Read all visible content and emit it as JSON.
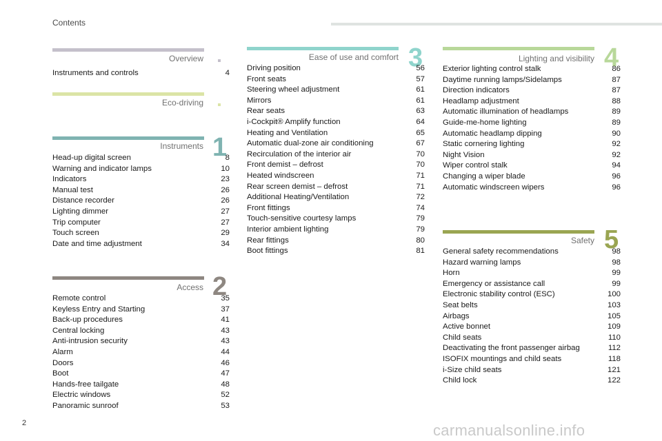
{
  "header": {
    "title": "Contents"
  },
  "footer": {
    "page_number": "2",
    "watermark": "carmanualsonline.info"
  },
  "sections": {
    "overview": {
      "title": "Overview",
      "color": "#c4c0cb",
      "entries": [
        {
          "label": "Instruments and controls",
          "page": "4"
        }
      ]
    },
    "eco": {
      "title": "Eco-driving",
      "color": "#dbe4a6",
      "entries": []
    },
    "instruments": {
      "title": "Instruments",
      "number": "1",
      "color": "#7fb3b1",
      "entries": [
        {
          "label": "Head-up digital screen",
          "page": "8"
        },
        {
          "label": "Warning and indicator lamps",
          "page": "10"
        },
        {
          "label": "Indicators",
          "page": "23"
        },
        {
          "label": "Manual test",
          "page": "26"
        },
        {
          "label": "Distance recorder",
          "page": "26"
        },
        {
          "label": "Lighting dimmer",
          "page": "27"
        },
        {
          "label": "Trip computer",
          "page": "27"
        },
        {
          "label": "Touch screen",
          "page": "29"
        },
        {
          "label": "Date and time adjustment",
          "page": "34"
        }
      ]
    },
    "access": {
      "title": "Access",
      "number": "2",
      "color": "#8e8781",
      "entries": [
        {
          "label": "Remote control",
          "page": "35"
        },
        {
          "label": "Keyless Entry and Starting",
          "page": "37"
        },
        {
          "label": "Back-up procedures",
          "page": "41"
        },
        {
          "label": "Central locking",
          "page": "43"
        },
        {
          "label": "Anti-intrusion security",
          "page": "43"
        },
        {
          "label": "Alarm",
          "page": "44"
        },
        {
          "label": "Doors",
          "page": "46"
        },
        {
          "label": "Boot",
          "page": "47"
        },
        {
          "label": "Hands-free tailgate",
          "page": "48"
        },
        {
          "label": "Electric windows",
          "page": "52"
        },
        {
          "label": "Panoramic sunroof",
          "page": "53"
        }
      ]
    },
    "ease": {
      "title": "Ease of use and comfort",
      "number": "3",
      "color": "#8fd4cc",
      "entries": [
        {
          "label": "Driving position",
          "page": "56"
        },
        {
          "label": "Front seats",
          "page": "57"
        },
        {
          "label": "Steering wheel adjustment",
          "page": "61"
        },
        {
          "label": "Mirrors",
          "page": "61"
        },
        {
          "label": "Rear seats",
          "page": "63"
        },
        {
          "label": "i-Cockpit® Amplify function",
          "page": "64"
        },
        {
          "label": "Heating and Ventilation",
          "page": "65"
        },
        {
          "label": "Automatic dual-zone air conditioning",
          "page": "67"
        },
        {
          "label": "Recirculation of the interior air",
          "page": "70"
        },
        {
          "label": "Front demist – defrost",
          "page": "70"
        },
        {
          "label": "Heated windscreen",
          "page": "71"
        },
        {
          "label": "Rear screen demist – defrost",
          "page": "71"
        },
        {
          "label": "Additional Heating/Ventilation",
          "page": "72"
        },
        {
          "label": "Front fittings",
          "page": "74"
        },
        {
          "label": "Touch-sensitive courtesy lamps",
          "page": "79"
        },
        {
          "label": "Interior ambient lighting",
          "page": "79"
        },
        {
          "label": "Rear fittings",
          "page": "80"
        },
        {
          "label": "Boot fittings",
          "page": "81"
        }
      ]
    },
    "lighting": {
      "title": "Lighting and visibility",
      "number": "4",
      "color": "#b8d89a",
      "entries": [
        {
          "label": "Exterior lighting control stalk",
          "page": "86"
        },
        {
          "label": "Daytime running lamps/Sidelamps",
          "page": "87"
        },
        {
          "label": "Direction indicators",
          "page": "87"
        },
        {
          "label": "Headlamp adjustment",
          "page": "88"
        },
        {
          "label": "Automatic illumination of headlamps",
          "page": "89"
        },
        {
          "label": "Guide-me-home lighting",
          "page": "89"
        },
        {
          "label": "Automatic headlamp dipping",
          "page": "90"
        },
        {
          "label": "Static cornering lighting",
          "page": "92"
        },
        {
          "label": "Night Vision",
          "page": "92"
        },
        {
          "label": "Wiper control stalk",
          "page": "94"
        },
        {
          "label": "Changing a wiper blade",
          "page": "96"
        },
        {
          "label": "Automatic windscreen wipers",
          "page": "96"
        }
      ]
    },
    "safety": {
      "title": "Safety",
      "number": "5",
      "color": "#9aa552",
      "entries": [
        {
          "label": "General safety recommendations",
          "page": "98"
        },
        {
          "label": "Hazard warning lamps",
          "page": "98"
        },
        {
          "label": "Horn",
          "page": "99"
        },
        {
          "label": "Emergency or assistance call",
          "page": "99"
        },
        {
          "label": "Electronic stability control (ESC)",
          "page": "100"
        },
        {
          "label": "Seat belts",
          "page": "103"
        },
        {
          "label": "Airbags",
          "page": "105"
        },
        {
          "label": "Active bonnet",
          "page": "109"
        },
        {
          "label": "Child seats",
          "page": "110"
        },
        {
          "label": "Deactivating the front passenger airbag",
          "page": "112"
        },
        {
          "label": "ISOFIX mountings and child seats",
          "page": "118"
        },
        {
          "label": "i-Size child seats",
          "page": "121"
        },
        {
          "label": "Child lock",
          "page": "122"
        }
      ]
    }
  }
}
